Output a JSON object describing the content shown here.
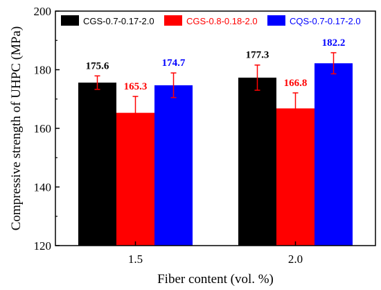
{
  "chart_data": {
    "type": "bar",
    "title": "",
    "xlabel": "Fiber content (vol. %)",
    "ylabel": "Compressive strength of UHPC (MPa)",
    "categories": [
      "1.5",
      "2.0"
    ],
    "ylim": [
      120,
      200
    ],
    "yticks": [
      "120",
      "140",
      "160",
      "180",
      "200"
    ],
    "legend_position": "top",
    "grid": false,
    "series": [
      {
        "name": "CGS-0.7-0.17-2.0",
        "color": "#000000",
        "label_color": "#000000",
        "error_color": "#ff0000",
        "values": [
          175.6,
          177.3
        ],
        "labels": [
          "175.6",
          "177.3"
        ],
        "errors": [
          2.3,
          4.3
        ]
      },
      {
        "name": "CGS-0.8-0.18-2.0",
        "color": "#ff0000",
        "label_color": "#ff0000",
        "error_color": "#ff0000",
        "values": [
          165.3,
          166.8
        ],
        "labels": [
          "165.3",
          "166.8"
        ],
        "errors": [
          5.6,
          5.3
        ]
      },
      {
        "name": "CQS-0.7-0.17-2.0",
        "color": "#0000ff",
        "label_color": "#0000ff",
        "error_color": "#ff0000",
        "values": [
          174.7,
          182.2
        ],
        "labels": [
          "174.7",
          "182.2"
        ],
        "errors": [
          4.2,
          3.6
        ]
      }
    ]
  }
}
